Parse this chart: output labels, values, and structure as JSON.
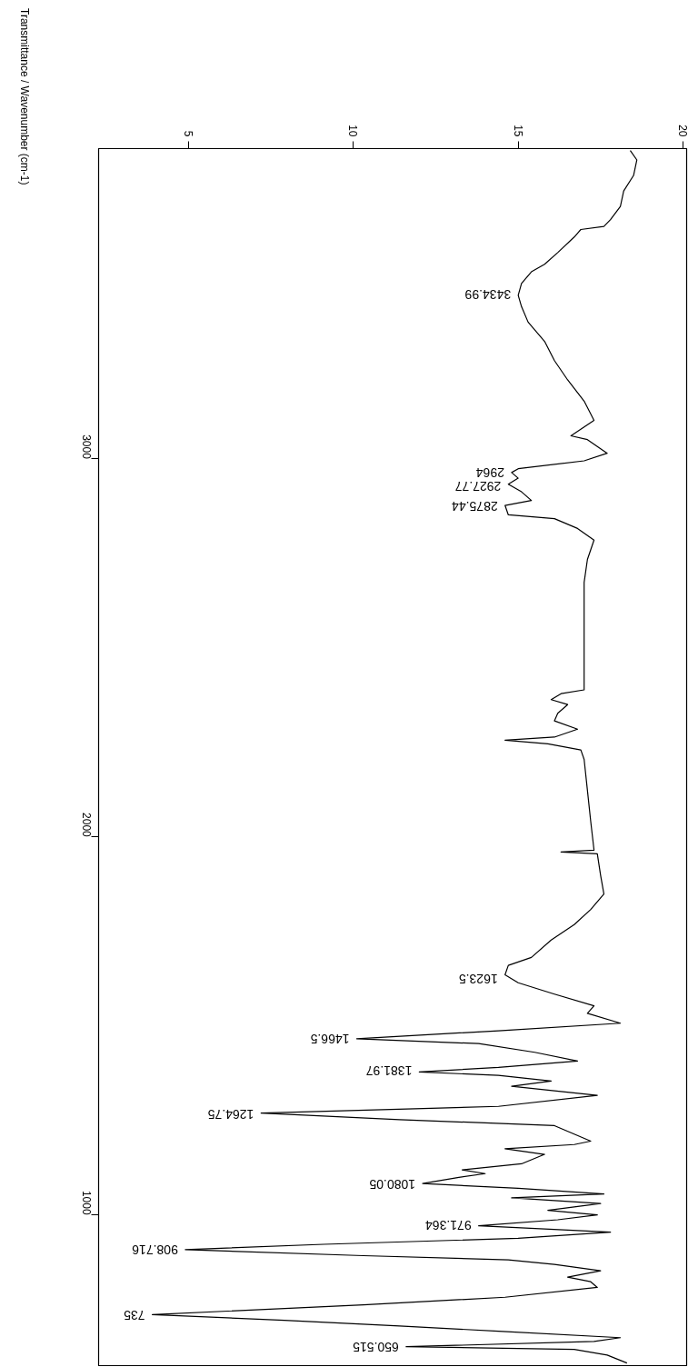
{
  "chart_data": {
    "type": "line",
    "grid": false,
    "ylabel": "Transmittance / Wavenumber (cm-1)",
    "ylim": [
      601,
      3821
    ],
    "yticks": [
      1000,
      2000,
      3000
    ],
    "xlim": [
      2.27,
      20.11
    ],
    "xticks": [
      5,
      10,
      15,
      20
    ],
    "x": [
      18.4,
      18.6,
      18.5,
      18.2,
      18.1,
      17.8,
      17.6,
      16.9,
      16.7,
      16.2,
      15.8,
      15.4,
      15.1,
      15.0,
      15.1,
      15.3,
      15.8,
      16.1,
      16.5,
      17.0,
      17.3,
      16.6,
      17.1,
      17.7,
      17.0,
      15.0,
      14.8,
      15.0,
      14.7,
      15.1,
      15.4,
      14.6,
      14.7,
      16.1,
      16.8,
      17.3,
      17.1,
      17.0,
      17.0,
      17.0,
      17.0,
      17.0,
      16.3,
      16.0,
      16.5,
      16.2,
      16.1,
      16.8,
      16.1,
      14.6,
      15.9,
      16.9,
      17.0,
      17.1,
      17.2,
      17.3,
      16.3,
      17.4,
      17.5,
      17.6,
      17.2,
      16.7,
      16.0,
      15.4,
      14.7,
      14.6,
      15.0,
      16.1,
      17.3,
      17.1,
      18.1,
      14.4,
      10.1,
      13.8,
      15.5,
      16.8,
      14.4,
      12.0,
      14.4,
      16.0,
      14.8,
      17.4,
      14.4,
      7.2,
      11.4,
      16.1,
      17.2,
      16.7,
      14.6,
      15.8,
      15.1,
      13.3,
      14.0,
      13.2,
      12.1,
      15.0,
      17.6,
      14.8,
      17.5,
      15.9,
      17.4,
      16.2,
      13.8,
      17.8,
      15.0,
      9.1,
      4.9,
      10.3,
      14.7,
      16.1,
      17.5,
      16.5,
      17.2,
      17.4,
      14.6,
      10.3,
      3.9,
      7.9,
      11.4,
      14.4,
      18.1,
      17.3,
      11.6,
      16.7,
      17.7,
      18.3
    ],
    "series": [
      {
        "color": "#000000",
        "values": [
          3816,
          3791,
          3750,
          3709,
          3668,
          3633,
          3615,
          3607,
          3587,
          3546,
          3515,
          3495,
          3464,
          3433,
          3403,
          3362,
          3311,
          3260,
          3209,
          3153,
          3102,
          3061,
          3051,
          3015,
          2995,
          2974,
          2964,
          2949,
          2933,
          2913,
          2890,
          2877,
          2852,
          2842,
          2816,
          2785,
          2734,
          2673,
          2591,
          2520,
          2471,
          2389,
          2379,
          2363,
          2350,
          2327,
          2307,
          2285,
          2264,
          2256,
          2246,
          2230,
          2205,
          2123,
          2041,
          1965,
          1960,
          1955,
          1898,
          1849,
          1808,
          1768,
          1727,
          1681,
          1660,
          1635,
          1614,
          1584,
          1553,
          1533,
          1507,
          1487,
          1466,
          1453,
          1430,
          1407,
          1390,
          1378,
          1369,
          1354,
          1340,
          1316,
          1287,
          1269,
          1252,
          1236,
          1195,
          1186,
          1175,
          1160,
          1135,
          1119,
          1109,
          1099,
          1083,
          1070,
          1055,
          1045,
          1030,
          1012,
          1000,
          987,
          971,
          954,
          938,
          922,
          908,
          892,
          881,
          869,
          852,
          835,
          823,
          808,
          782,
          762,
          736,
          721,
          706,
          692,
          675,
          665,
          651,
          644,
          629,
          608
        ]
      }
    ],
    "annotations": [
      {
        "text": "3434.99",
        "x": 15.0,
        "y": 3434.99
      },
      {
        "text": "2964",
        "x": 14.8,
        "y": 2964
      },
      {
        "text": "2927.77",
        "x": 14.7,
        "y": 2927.77
      },
      {
        "text": "2875.44",
        "x": 14.6,
        "y": 2875.44
      },
      {
        "text": "1623.5",
        "x": 14.6,
        "y": 1623.5
      },
      {
        "text": "1466.5",
        "x": 10.1,
        "y": 1466.5
      },
      {
        "text": "1381.97",
        "x": 12.0,
        "y": 1381.97
      },
      {
        "text": "1264.75",
        "x": 7.2,
        "y": 1264.75
      },
      {
        "text": "1080.05",
        "x": 12.1,
        "y": 1080.05
      },
      {
        "text": "971.364",
        "x": 13.8,
        "y": 971.364
      },
      {
        "text": "908.716",
        "x": 4.9,
        "y": 908.716
      },
      {
        "text": "735",
        "x": 3.9,
        "y": 735
      },
      {
        "text": "650.515",
        "x": 11.6,
        "y": 650.515
      }
    ]
  }
}
